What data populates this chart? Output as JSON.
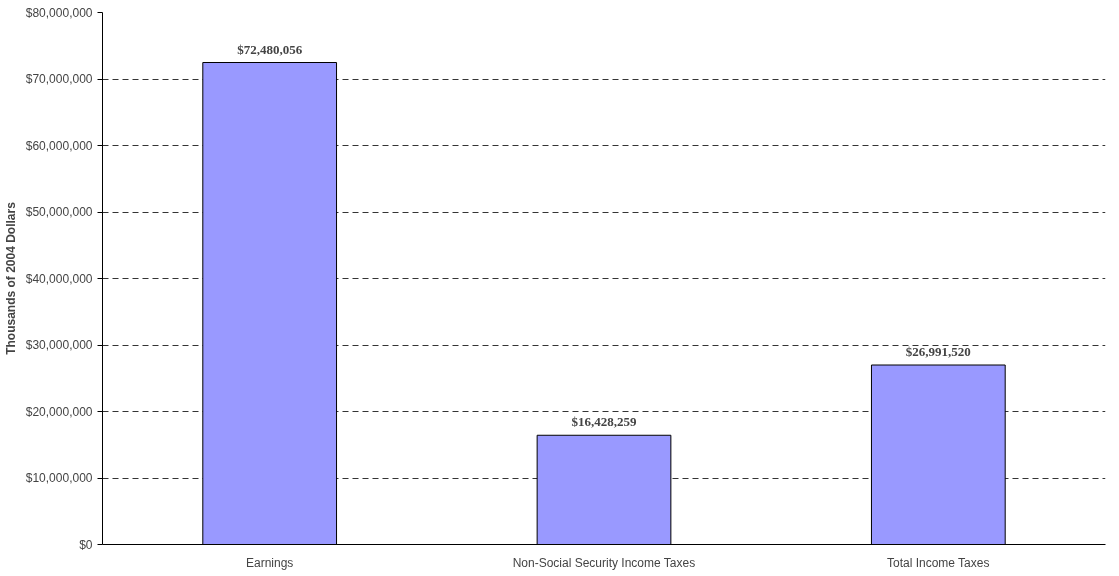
{
  "chart_data": {
    "type": "bar",
    "ylabel": "Thousands of 2004 Dollars",
    "categories": [
      "Earnings",
      "Non-Social Security Income Taxes",
      "Total Income Taxes"
    ],
    "values": [
      72480056,
      16428259,
      26991520
    ],
    "value_labels": [
      "$72,480,056",
      "$16,428,259",
      "$26,991,520"
    ],
    "color": "#9999ff",
    "ylim": [
      0,
      80000000
    ],
    "yticks": [
      {
        "value": 0,
        "label": "$0"
      },
      {
        "value": 10000000,
        "label": "$10,000,000"
      },
      {
        "value": 20000000,
        "label": "$20,000,000"
      },
      {
        "value": 30000000,
        "label": "$30,000,000"
      },
      {
        "value": 40000000,
        "label": "$40,000,000"
      },
      {
        "value": 50000000,
        "label": "$50,000,000"
      },
      {
        "value": 60000000,
        "label": "$60,000,000"
      },
      {
        "value": 70000000,
        "label": "$70,000,000"
      },
      {
        "value": 80000000,
        "label": "$80,000,000"
      }
    ],
    "grid": "y"
  }
}
